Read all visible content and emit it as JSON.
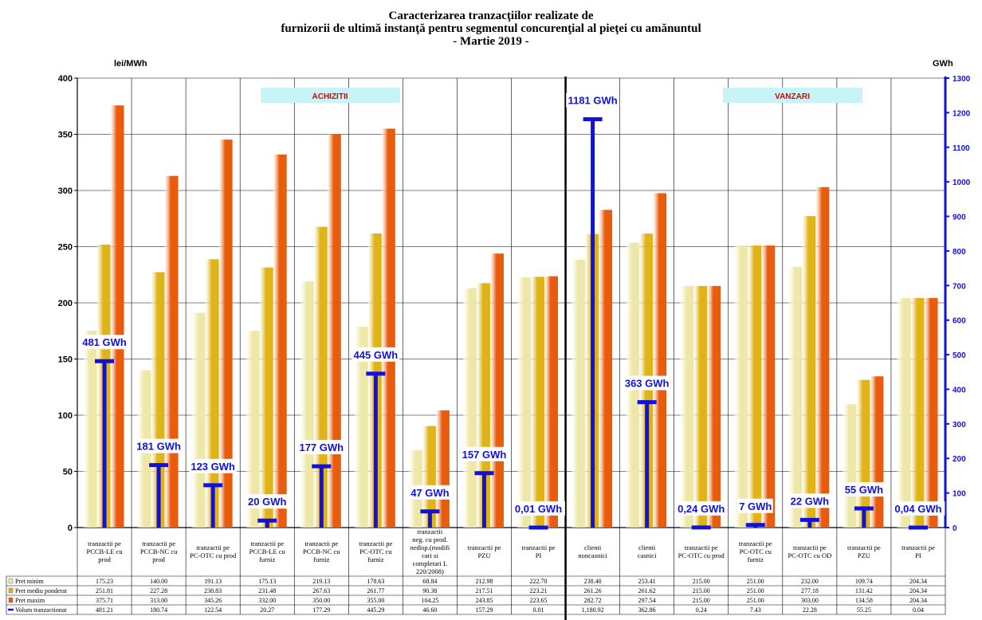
{
  "title": {
    "line1": "Caracterizarea tranzacţiilor realizate de",
    "line2": "furnizorii de ultimă instanţă pentru segmentul concurenţial al pieţei cu amănuntul",
    "line3": "- Martie 2019 -"
  },
  "sections": {
    "left": "ACHIZITII",
    "right": "VANZARI"
  },
  "chart_data": {
    "type": "bar",
    "ylabel_left": "lei/MWh",
    "ylabel_right": "GWh",
    "ylim_left": [
      0,
      400
    ],
    "yticks_left": [
      0,
      50,
      100,
      150,
      200,
      250,
      300,
      350,
      400
    ],
    "ylim_right": [
      0,
      1300
    ],
    "yticks_right": [
      0,
      100,
      200,
      300,
      400,
      500,
      600,
      700,
      800,
      900,
      1000,
      1100,
      1200,
      1300
    ],
    "grid": true,
    "legend": "table-below",
    "categories": [
      "tranzactii pe PCCB-LE cu prod",
      "tranzactii pe PCCB-NC cu prod",
      "tranzactii pe PC-OTC cu prod",
      "tranzactii pe PCCB-LE cu furniz",
      "tranzactii pe PCCB-NC cu furniz",
      "tranzactii pe PC-OTC cu furniz",
      "tranzactii neg. cu prod. nedisp.(modificari si completari L 220/2008)",
      "tranzactii pe PZU",
      "tranzactii pe PI",
      "clienti noncasnici",
      "clienti casnici",
      "tranzactii pe PC-OTC cu prod",
      "tranzactii pe PC-OTC cu furniz",
      "tranzactii pe PC-OTC cu OD",
      "tranzactii pe PZU",
      "tranzactii pe PI"
    ],
    "series": [
      {
        "name": "Pret minim",
        "color": "#eee8a8",
        "axis": "left",
        "values": [
          175.23,
          140.0,
          191.13,
          175.13,
          219.13,
          178.63,
          68.84,
          212.98,
          222.7,
          238.4,
          253.41,
          215.0,
          251.0,
          232.0,
          109.74,
          204.34
        ],
        "labels": [
          "175.23",
          "140.00",
          "191.13",
          "175.13",
          "219.13",
          "178.63",
          "68.84",
          "212.98",
          "222.70",
          "238.40",
          "253.41",
          "215.00",
          "251.00",
          "232.00",
          "109.74",
          "204.34"
        ]
      },
      {
        "name": "Pret mediu ponderat",
        "color": "#e0b418",
        "axis": "left",
        "values": [
          251.81,
          227.28,
          238.83,
          231.48,
          267.63,
          261.77,
          90.38,
          217.51,
          223.21,
          261.26,
          261.62,
          215.0,
          251.0,
          277.18,
          131.42,
          204.34
        ],
        "labels": [
          "251.81",
          "227.28",
          "238.83",
          "231.48",
          "267.63",
          "261.77",
          "90.38",
          "217.51",
          "223.21",
          "261.26",
          "261.62",
          "215.00",
          "251.00",
          "277.18",
          "131.42",
          "204.34"
        ]
      },
      {
        "name": "Pret maxim",
        "color": "#e85c0c",
        "axis": "left",
        "values": [
          375.71,
          313.0,
          345.26,
          332.0,
          350.0,
          355.0,
          104.25,
          243.85,
          223.65,
          282.72,
          297.54,
          215.0,
          251.0,
          303.0,
          134.58,
          204.34
        ],
        "labels": [
          "375.71",
          "313.00",
          "345.26",
          "332.00",
          "350.00",
          "355.00",
          "104.25",
          "243.85",
          "223.65",
          "282.72",
          "297.54",
          "215.00",
          "251.00",
          "303.00",
          "134.58",
          "204.34"
        ]
      },
      {
        "name": "Volum tranzactionat",
        "color": "#1010e0",
        "axis": "right",
        "values": [
          481.21,
          180.74,
          122.54,
          20.27,
          177.29,
          445.29,
          46.6,
          157.29,
          0.01,
          1180.92,
          362.86,
          0.24,
          7.43,
          22.28,
          55.25,
          0.04
        ],
        "labels": [
          "481.21",
          "180.74",
          "122.54",
          "20.27",
          "177.29",
          "445.29",
          "46.60",
          "157.29",
          "0.01",
          "1,180.92",
          "362.86",
          "0.24",
          "7.43",
          "22.28",
          "55.25",
          "0.04"
        ]
      }
    ],
    "data_labels": [
      "481 GWh",
      "181 GWh",
      "123 GWh",
      "20 GWh",
      "177 GWh",
      "445 GWh",
      "47 GWh",
      "157 GWh",
      "0,01 GWh",
      "1181 GWh",
      "363 GWh",
      "0,24 GWh",
      "7 GWh",
      "22 GWh",
      "55 GWh",
      "0,04 GWh"
    ]
  }
}
